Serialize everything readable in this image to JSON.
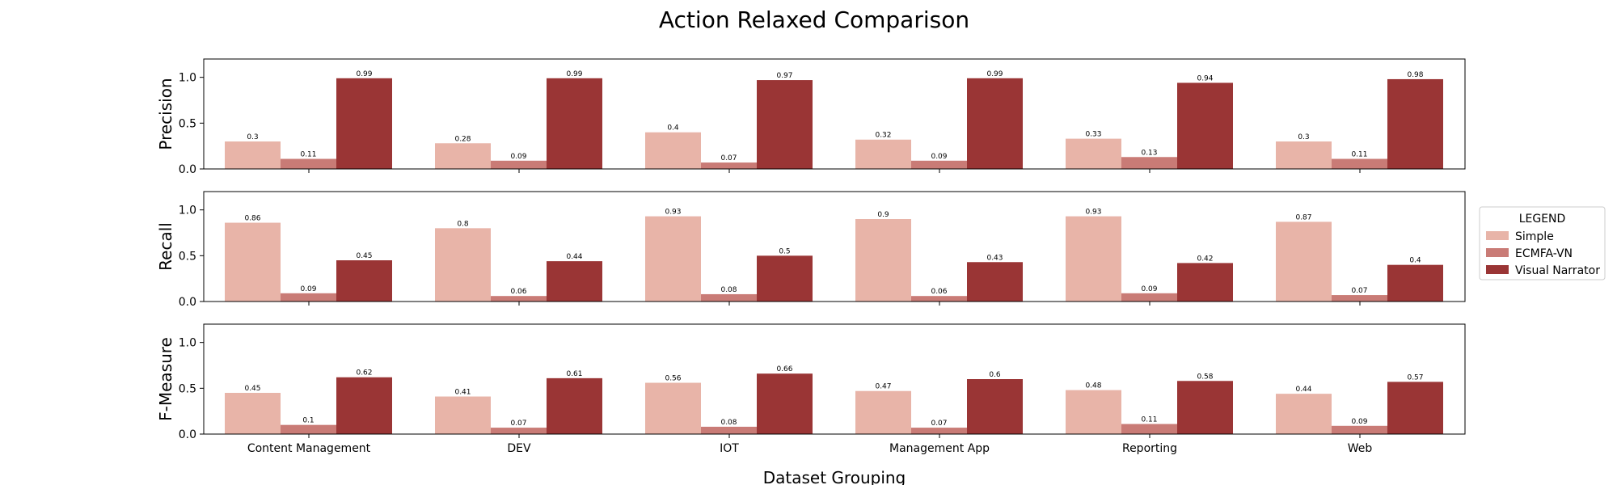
{
  "chart_data": {
    "type": "bar",
    "title": "Action Relaxed Comparison",
    "xlabel": "Dataset Grouping",
    "categories": [
      "Content Management",
      "DEV",
      "IOT",
      "Management App",
      "Reporting",
      "Web"
    ],
    "series_names": [
      "Simple",
      "ECMFA-VN",
      "Visual Narrator"
    ],
    "colors": [
      "#e8b4a8",
      "#c97b76",
      "#9a3535"
    ],
    "ylim": [
      0,
      1.2
    ],
    "yticks": [
      "0.0",
      "0.5",
      "1.0"
    ],
    "legend": {
      "title": "LEGEND",
      "placement": "right"
    },
    "panels": [
      {
        "ylabel": "Precision",
        "series": [
          {
            "name": "Simple",
            "values": [
              0.3,
              0.28,
              0.4,
              0.32,
              0.33,
              0.3
            ]
          },
          {
            "name": "ECMFA-VN",
            "values": [
              0.11,
              0.09,
              0.07,
              0.09,
              0.13,
              0.11
            ]
          },
          {
            "name": "Visual Narrator",
            "values": [
              0.99,
              0.99,
              0.97,
              0.99,
              0.94,
              0.98
            ]
          }
        ]
      },
      {
        "ylabel": "Recall",
        "series": [
          {
            "name": "Simple",
            "values": [
              0.86,
              0.8,
              0.93,
              0.9,
              0.93,
              0.87
            ]
          },
          {
            "name": "ECMFA-VN",
            "values": [
              0.09,
              0.06,
              0.08,
              0.06,
              0.09,
              0.07
            ]
          },
          {
            "name": "Visual Narrator",
            "values": [
              0.45,
              0.44,
              0.5,
              0.43,
              0.42,
              0.4
            ]
          }
        ]
      },
      {
        "ylabel": "F-Measure",
        "series": [
          {
            "name": "Simple",
            "values": [
              0.45,
              0.41,
              0.56,
              0.47,
              0.48,
              0.44
            ]
          },
          {
            "name": "ECMFA-VN",
            "values": [
              0.1,
              0.07,
              0.08,
              0.07,
              0.11,
              0.09
            ]
          },
          {
            "name": "Visual Narrator",
            "values": [
              0.62,
              0.61,
              0.66,
              0.6,
              0.58,
              0.57
            ]
          }
        ]
      }
    ]
  }
}
